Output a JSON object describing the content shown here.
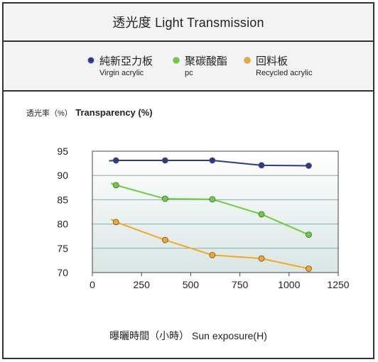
{
  "title": "透光度 Light Transmission",
  "legend": [
    {
      "name": "純新亞力板",
      "sub": "Virgin acrylic",
      "color": "#2b3990"
    },
    {
      "name": "聚碳酸酯",
      "sub": "pc",
      "color": "#6ccf3a"
    },
    {
      "name": "回料板",
      "sub": "Recycled acrylic",
      "color": "#f5a623"
    }
  ],
  "ylabel_zh": "透光率（%）",
  "ylabel_en": "Transparency (%)",
  "xlabel": "曝曬時間（小時） Sun exposure(H)",
  "chart_data": {
    "type": "line",
    "title": "透光度 Light Transmission",
    "xlabel": "曝曬時間（小時） Sun exposure(H)",
    "ylabel": "透光率（%） Transparency (%)",
    "xlim": [
      0,
      1250
    ],
    "ylim": [
      70,
      95
    ],
    "xticks": [
      0,
      250,
      500,
      750,
      1000,
      1250
    ],
    "yticks": [
      70,
      75,
      80,
      85,
      90,
      95
    ],
    "grid": true,
    "legend_position": "top",
    "series": [
      {
        "name": "純新亞力板 Virgin acrylic",
        "color": "#2b3990",
        "x": [
          120,
          370,
          610,
          860,
          1100
        ],
        "y": [
          93.1,
          93.1,
          93.1,
          92.1,
          92.0
        ],
        "line_start": [
          85,
          93.0
        ]
      },
      {
        "name": "聚碳酸酯 pc",
        "color": "#6ccf3a",
        "x": [
          120,
          370,
          610,
          860,
          1100
        ],
        "y": [
          88.0,
          85.2,
          85.1,
          82.0,
          77.8
        ],
        "line_start": [
          95,
          88.4
        ]
      },
      {
        "name": "回料板 Recycled acrylic",
        "color": "#f5a623",
        "x": [
          120,
          370,
          610,
          860,
          1100
        ],
        "y": [
          80.4,
          76.7,
          73.6,
          72.9,
          70.8
        ],
        "line_start": [
          95,
          81.0
        ]
      }
    ]
  }
}
